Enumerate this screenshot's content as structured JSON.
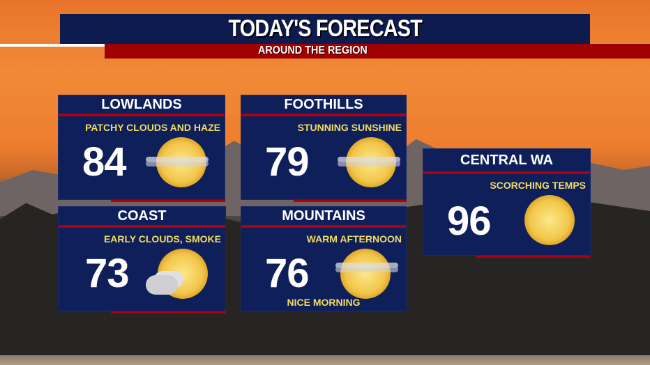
{
  "header": {
    "title": "TODAY'S FORECAST",
    "subtitle": "AROUND THE REGION"
  },
  "colors": {
    "banner": "#0d1b4f",
    "accent_red": "#a00000",
    "card": "#0f1f5a",
    "condition_text": "#f3dc62"
  },
  "regions": [
    {
      "name": "LOWLANDS",
      "condition": "PATCHY CLOUDS AND HAZE",
      "temp": "84",
      "icon": "hazy-sun-icon"
    },
    {
      "name": "FOOTHILLS",
      "condition": "STUNNING SUNSHINE",
      "temp": "79",
      "icon": "hazy-sun-icon"
    },
    {
      "name": "COAST",
      "condition": "EARLY CLOUDS, SMOKE",
      "temp": "73",
      "icon": "partly-cloudy-sun-icon"
    },
    {
      "name": "MOUNTAINS",
      "condition": "WARM AFTERNOON",
      "temp": "76",
      "icon": "hazy-sun-icon",
      "note": "NICE MORNING"
    },
    {
      "name": "CENTRAL WA",
      "condition": "SCORCHING TEMPS",
      "temp": "96",
      "icon": "sun-icon"
    }
  ]
}
